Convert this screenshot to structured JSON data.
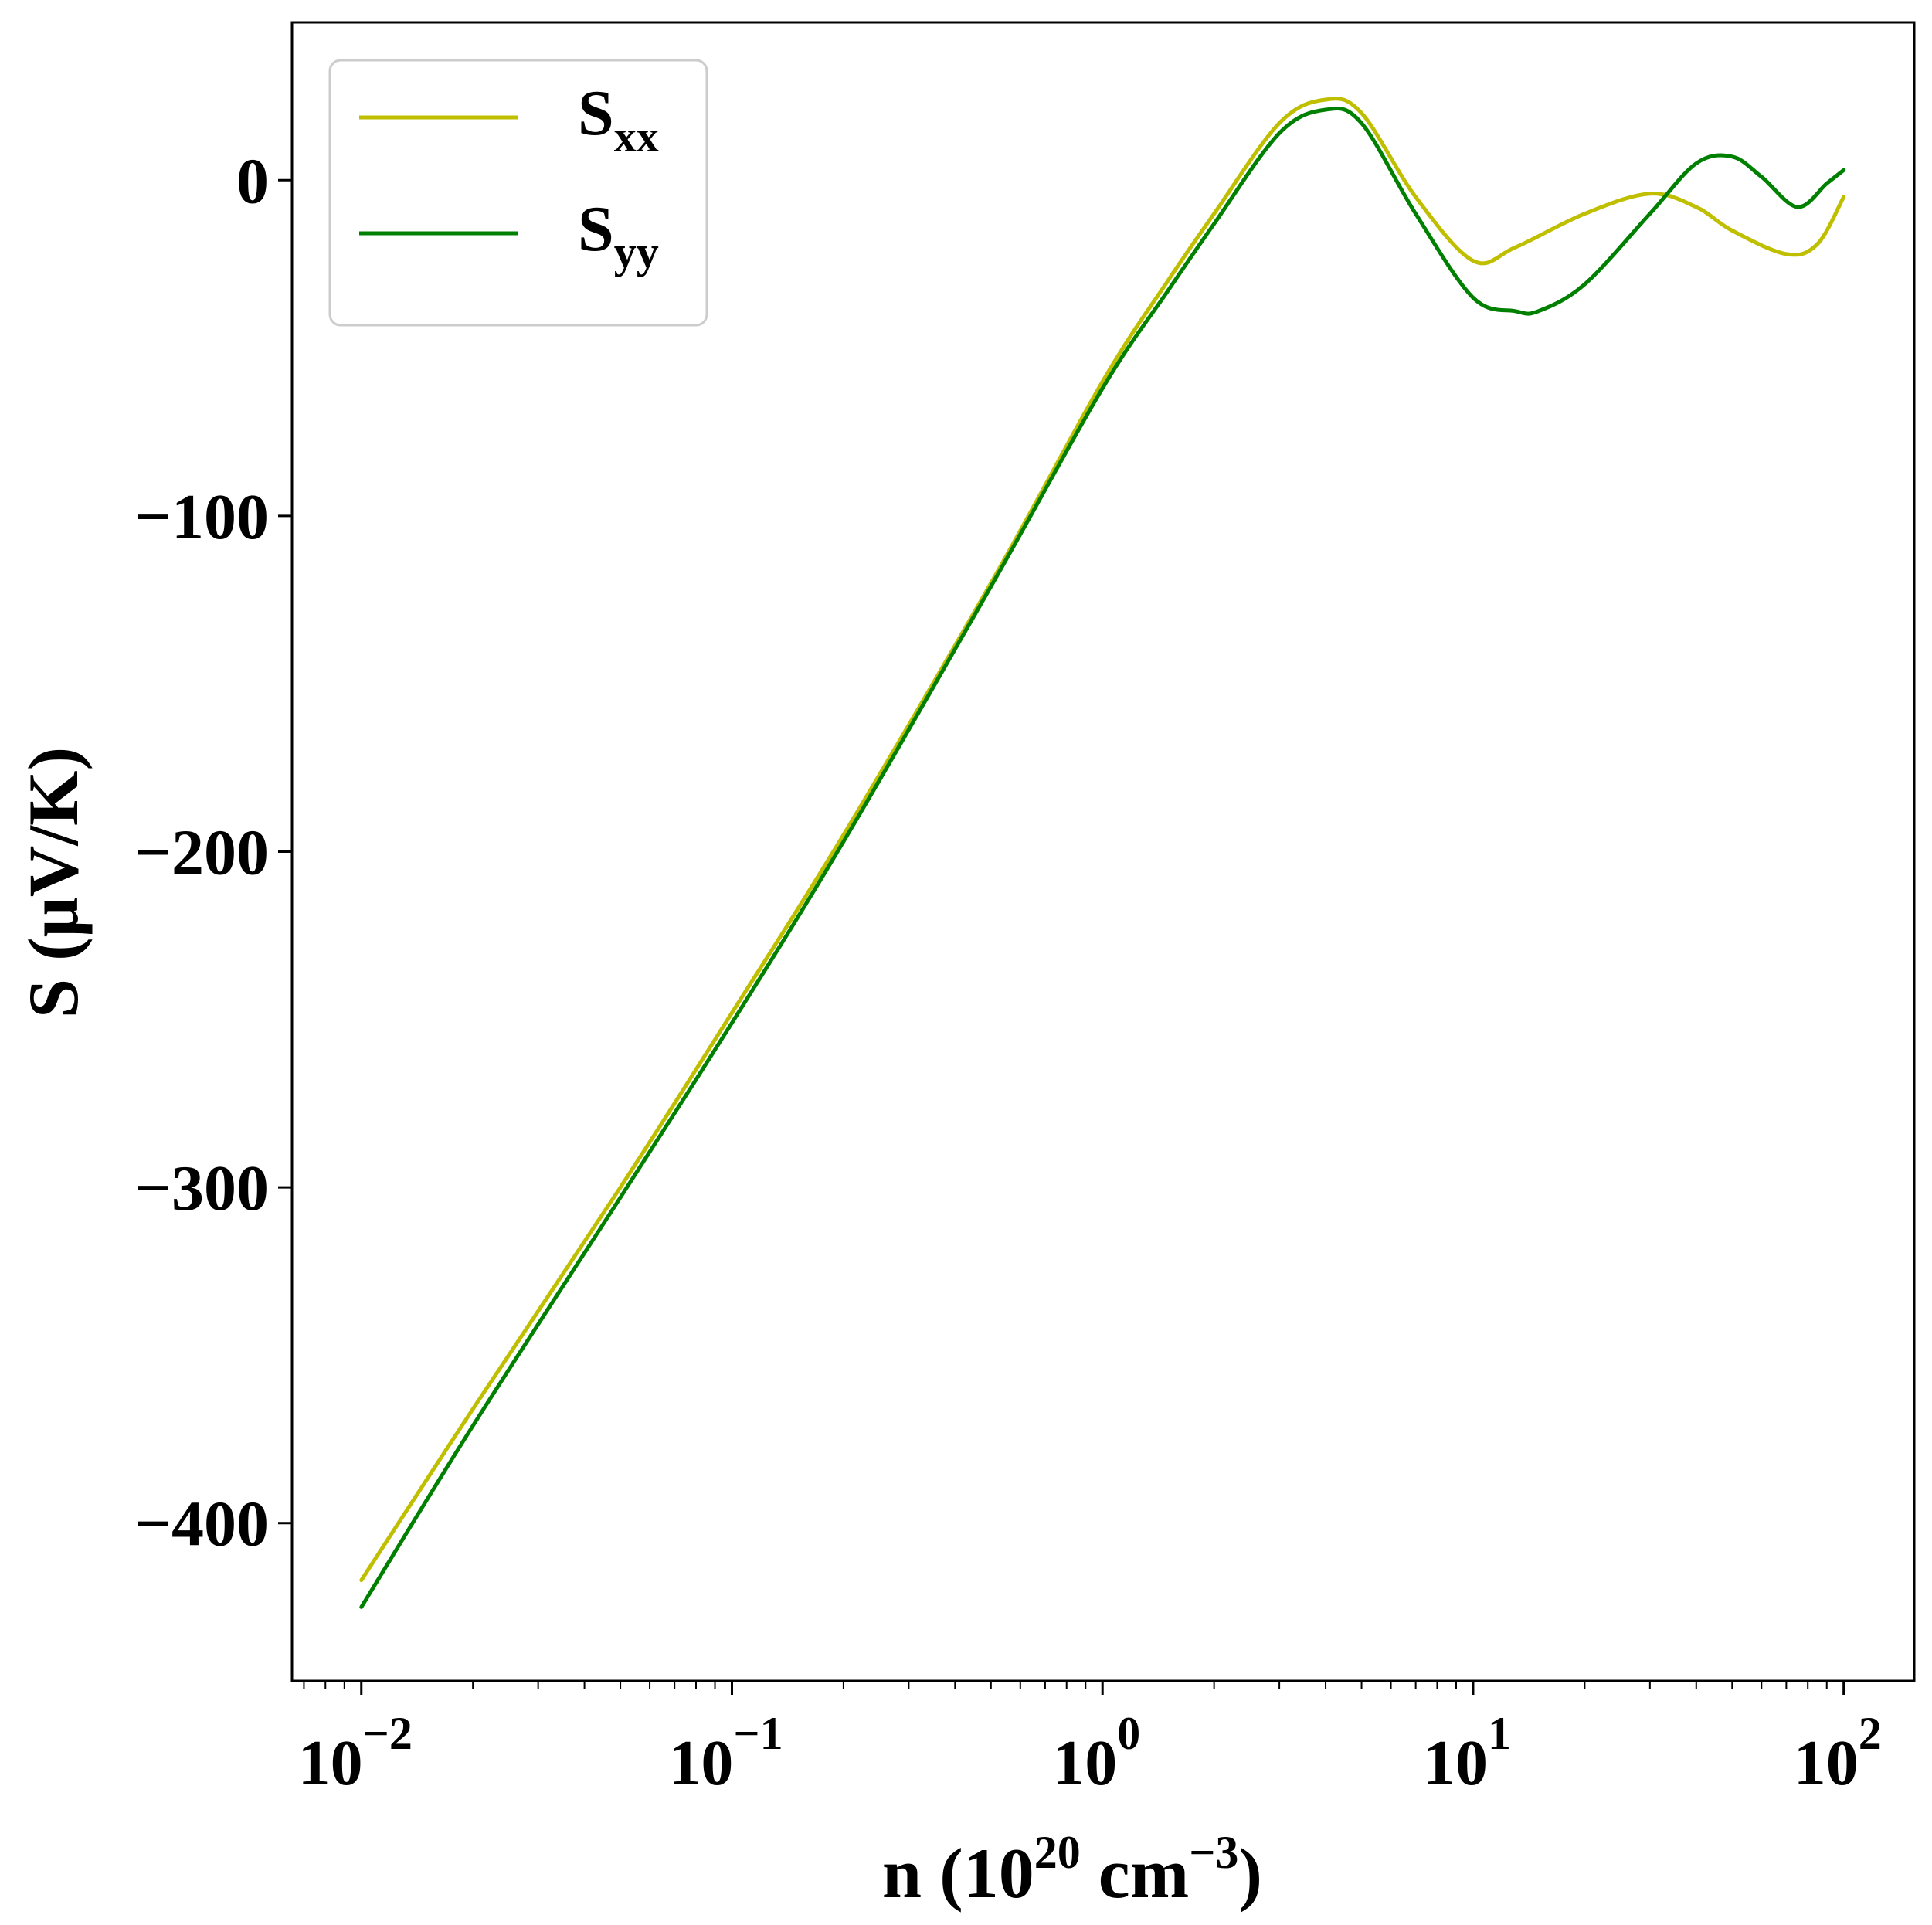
{
  "chart_data": {
    "type": "line",
    "title": "",
    "xlabel": {
      "base": "n (10",
      "exp1": "20",
      "mid": " cm",
      "exp2": "−3",
      "end": ")"
    },
    "ylabel": "S (μV/K)",
    "xscale": "log",
    "xlim": [
      0.0065,
      155
    ],
    "ylim": [
      -447,
      47
    ],
    "x_ticks": [
      {
        "value": 0.01,
        "base": "10",
        "exp": "−2"
      },
      {
        "value": 0.1,
        "base": "10",
        "exp": "−1"
      },
      {
        "value": 1,
        "base": "10",
        "exp": "0"
      },
      {
        "value": 10,
        "base": "10",
        "exp": "1"
      },
      {
        "value": 100,
        "base": "10",
        "exp": "2"
      }
    ],
    "y_ticks": [
      {
        "value": 0,
        "label": "0"
      },
      {
        "value": -100,
        "label": "−100"
      },
      {
        "value": -200,
        "label": "−200"
      },
      {
        "value": -300,
        "label": "−300"
      },
      {
        "value": -400,
        "label": "−400"
      }
    ],
    "grid": false,
    "legend_position": "upper-left",
    "series": [
      {
        "name": "Sxx",
        "label_main": "S",
        "label_sub": "xx",
        "color": "#bfbf00",
        "x": [
          0.01,
          0.02,
          0.05,
          0.1,
          0.2,
          0.5,
          1,
          1.5,
          2,
          3,
          4,
          5,
          7,
          10,
          13,
          20,
          30,
          40,
          50,
          70,
          85,
          100
        ],
        "y": [
          -417,
          -366,
          -300,
          -248,
          -195,
          -120,
          -60,
          -30,
          -10,
          17,
          24,
          20,
          -5,
          -24,
          -20,
          -10,
          -4,
          -8,
          -15,
          -22,
          -19,
          -5
        ]
      },
      {
        "name": "Syy",
        "label_main": "S",
        "label_sub": "yy",
        "color": "#008000",
        "x": [
          0.01,
          0.02,
          0.05,
          0.1,
          0.2,
          0.5,
          1,
          1.5,
          2,
          3,
          4,
          5,
          7,
          10,
          13,
          15,
          20,
          30,
          40,
          50,
          60,
          75,
          90,
          100
        ],
        "y": [
          -425,
          -371,
          -303,
          -251,
          -197,
          -121,
          -62,
          -33,
          -13,
          14,
          21,
          17,
          -10,
          -35,
          -39,
          -39,
          -31,
          -10,
          5,
          7,
          1,
          -8,
          -1,
          3
        ]
      }
    ]
  }
}
